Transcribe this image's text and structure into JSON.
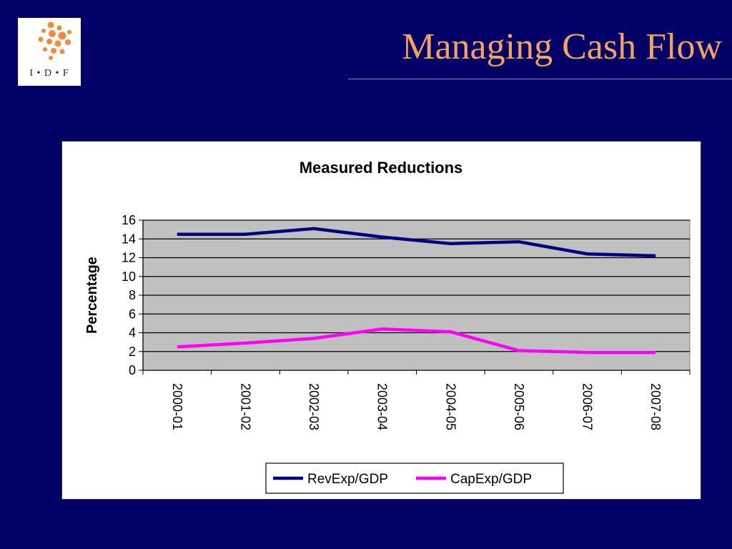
{
  "logo": {
    "text": "I • D • F",
    "accent_color": "#f08a3c"
  },
  "slide": {
    "title": "Managing Cash Flow",
    "title_color": "#f5a25f",
    "background": "#000066"
  },
  "chart_data": {
    "type": "line",
    "title": "Measured Reductions",
    "xlabel": "",
    "ylabel": "Percentage",
    "categories": [
      "2000-01",
      "2001-02",
      "2002-03",
      "2003-04",
      "2004-05",
      "2005-06",
      "2006-07",
      "2007-08"
    ],
    "ylim": [
      0,
      16
    ],
    "yticks": [
      0,
      2,
      4,
      6,
      8,
      10,
      12,
      14,
      16
    ],
    "grid": true,
    "plot_background": "#c0c0c0",
    "legend_position": "bottom",
    "series": [
      {
        "name": "RevExp/GDP",
        "color": "#000080",
        "values": [
          14.5,
          14.5,
          15.1,
          14.2,
          13.5,
          13.7,
          12.4,
          12.2
        ]
      },
      {
        "name": "CapExp/GDP",
        "color": "#ff00ff",
        "values": [
          2.5,
          2.9,
          3.4,
          4.4,
          4.1,
          2.1,
          1.9,
          1.9
        ]
      }
    ]
  }
}
